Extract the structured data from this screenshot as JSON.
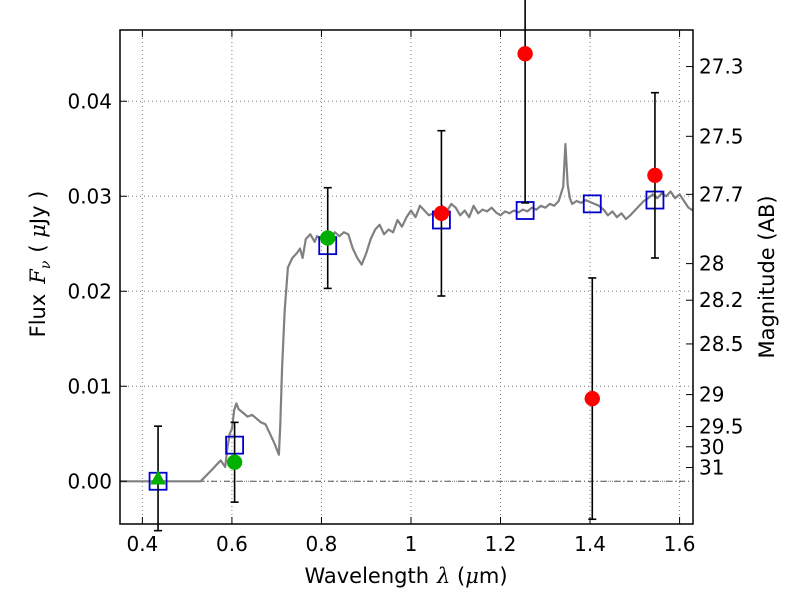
{
  "chart_data": {
    "type": "scatter",
    "xlabel": {
      "prefix": "Wavelength",
      "symbol": "λ",
      "unit_open": " (",
      "unit_mu": "μ",
      "unit_rest": "m)"
    },
    "ylabel": {
      "prefix": "Flux",
      "symbol": "F",
      "subscript": "ν",
      "unit_open": "( ",
      "unit_mu": "μ",
      "unit_rest": "Jy )"
    },
    "y2label": "Magnitude (AB)",
    "xlim": [
      0.35,
      1.63
    ],
    "ylim": [
      -0.0045,
      0.0475
    ],
    "grid": true,
    "x_ticks": [
      {
        "value": 0.4,
        "label": "0.4"
      },
      {
        "value": 0.6,
        "label": "0.6"
      },
      {
        "value": 0.8,
        "label": "0.8"
      },
      {
        "value": 1.0,
        "label": "1"
      },
      {
        "value": 1.2,
        "label": "1.2"
      },
      {
        "value": 1.4,
        "label": "1.4"
      },
      {
        "value": 1.6,
        "label": "1.6"
      }
    ],
    "y_ticks": [
      {
        "value": 0.0,
        "label": "0.00"
      },
      {
        "value": 0.01,
        "label": "0.01"
      },
      {
        "value": 0.02,
        "label": "0.02"
      },
      {
        "value": 0.03,
        "label": "0.03"
      },
      {
        "value": 0.04,
        "label": "0.04"
      }
    ],
    "mag_ticks": [
      {
        "value": 27.3,
        "label": "27.3"
      },
      {
        "value": 27.5,
        "label": "27.5"
      },
      {
        "value": 27.7,
        "label": "27.7"
      },
      {
        "value": 28,
        "label": "28"
      },
      {
        "value": 28.2,
        "label": "28.2"
      },
      {
        "value": 28.5,
        "label": "28.5"
      },
      {
        "value": 29,
        "label": "29"
      },
      {
        "value": 29.5,
        "label": "29.5"
      },
      {
        "value": 30,
        "label": "30"
      },
      {
        "value": 31,
        "label": "31"
      }
    ],
    "zero_flux_magnitude_jy": 3631,
    "colors": {
      "model": "#808080",
      "detection": "#ff0000",
      "green": "#00b000",
      "model_box": "#0000cc",
      "errorbar": "#000000",
      "grid": "#808080",
      "zero_line": "#555555"
    },
    "model_spectrum": [
      [
        0.35,
        0.0
      ],
      [
        0.53,
        0.0
      ],
      [
        0.555,
        0.0012
      ],
      [
        0.575,
        0.0022
      ],
      [
        0.585,
        0.0015
      ],
      [
        0.59,
        0.0035
      ],
      [
        0.595,
        0.005
      ],
      [
        0.6,
        0.0055
      ],
      [
        0.605,
        0.0075
      ],
      [
        0.61,
        0.0082
      ],
      [
        0.615,
        0.0076
      ],
      [
        0.625,
        0.0072
      ],
      [
        0.635,
        0.0068
      ],
      [
        0.645,
        0.007
      ],
      [
        0.655,
        0.0066
      ],
      [
        0.665,
        0.0062
      ],
      [
        0.675,
        0.006
      ],
      [
        0.685,
        0.005
      ],
      [
        0.695,
        0.004
      ],
      [
        0.705,
        0.0028
      ],
      [
        0.708,
        0.006
      ],
      [
        0.712,
        0.012
      ],
      [
        0.718,
        0.018
      ],
      [
        0.725,
        0.0225
      ],
      [
        0.735,
        0.0235
      ],
      [
        0.745,
        0.024
      ],
      [
        0.752,
        0.0245
      ],
      [
        0.758,
        0.0235
      ],
      [
        0.765,
        0.0255
      ],
      [
        0.775,
        0.026
      ],
      [
        0.785,
        0.0252
      ],
      [
        0.79,
        0.0258
      ],
      [
        0.8,
        0.0255
      ],
      [
        0.81,
        0.0258
      ],
      [
        0.82,
        0.0255
      ],
      [
        0.83,
        0.0262
      ],
      [
        0.84,
        0.0258
      ],
      [
        0.85,
        0.0262
      ],
      [
        0.86,
        0.026
      ],
      [
        0.87,
        0.0245
      ],
      [
        0.88,
        0.0235
      ],
      [
        0.89,
        0.0228
      ],
      [
        0.9,
        0.024
      ],
      [
        0.91,
        0.0255
      ],
      [
        0.92,
        0.0265
      ],
      [
        0.93,
        0.027
      ],
      [
        0.94,
        0.026
      ],
      [
        0.95,
        0.0265
      ],
      [
        0.96,
        0.0262
      ],
      [
        0.97,
        0.0275
      ],
      [
        0.98,
        0.0268
      ],
      [
        0.99,
        0.0278
      ],
      [
        1.0,
        0.0285
      ],
      [
        1.01,
        0.0278
      ],
      [
        1.02,
        0.029
      ],
      [
        1.03,
        0.0285
      ],
      [
        1.04,
        0.028
      ],
      [
        1.05,
        0.0282
      ],
      [
        1.06,
        0.0285
      ],
      [
        1.07,
        0.029
      ],
      [
        1.08,
        0.0284
      ],
      [
        1.09,
        0.0292
      ],
      [
        1.1,
        0.0288
      ],
      [
        1.11,
        0.028
      ],
      [
        1.12,
        0.0285
      ],
      [
        1.13,
        0.0278
      ],
      [
        1.14,
        0.029
      ],
      [
        1.15,
        0.0282
      ],
      [
        1.16,
        0.0286
      ],
      [
        1.17,
        0.0284
      ],
      [
        1.18,
        0.0288
      ],
      [
        1.19,
        0.0283
      ],
      [
        1.2,
        0.028
      ],
      [
        1.21,
        0.0284
      ],
      [
        1.22,
        0.0282
      ],
      [
        1.23,
        0.0285
      ],
      [
        1.24,
        0.0283
      ],
      [
        1.25,
        0.0286
      ],
      [
        1.26,
        0.0284
      ],
      [
        1.27,
        0.0288
      ],
      [
        1.28,
        0.0286
      ],
      [
        1.29,
        0.029
      ],
      [
        1.3,
        0.0288
      ],
      [
        1.31,
        0.0292
      ],
      [
        1.32,
        0.029
      ],
      [
        1.33,
        0.0295
      ],
      [
        1.34,
        0.031
      ],
      [
        1.345,
        0.0355
      ],
      [
        1.35,
        0.0312
      ],
      [
        1.355,
        0.0298
      ],
      [
        1.36,
        0.0292
      ],
      [
        1.37,
        0.0295
      ],
      [
        1.38,
        0.0293
      ],
      [
        1.39,
        0.0296
      ],
      [
        1.4,
        0.0294
      ],
      [
        1.41,
        0.0292
      ],
      [
        1.42,
        0.029
      ],
      [
        1.43,
        0.0286
      ],
      [
        1.44,
        0.028
      ],
      [
        1.45,
        0.0284
      ],
      [
        1.46,
        0.0278
      ],
      [
        1.47,
        0.0282
      ],
      [
        1.48,
        0.0276
      ],
      [
        1.49,
        0.028
      ],
      [
        1.5,
        0.0285
      ],
      [
        1.51,
        0.029
      ],
      [
        1.52,
        0.0295
      ],
      [
        1.53,
        0.0298
      ],
      [
        1.54,
        0.0302
      ],
      [
        1.55,
        0.0298
      ],
      [
        1.56,
        0.0303
      ],
      [
        1.57,
        0.03
      ],
      [
        1.58,
        0.0305
      ],
      [
        1.59,
        0.0298
      ],
      [
        1.6,
        0.0302
      ],
      [
        1.61,
        0.0295
      ],
      [
        1.62,
        0.0288
      ],
      [
        1.63,
        0.0285
      ]
    ],
    "model_photometry": [
      {
        "x": 0.435,
        "y": 0.0
      },
      {
        "x": 0.606,
        "y": 0.0038
      },
      {
        "x": 0.814,
        "y": 0.0248
      },
      {
        "x": 1.068,
        "y": 0.0275
      },
      {
        "x": 1.255,
        "y": 0.0285
      },
      {
        "x": 1.405,
        "y": 0.0292
      },
      {
        "x": 1.545,
        "y": 0.0296
      }
    ],
    "observations": [
      {
        "x": 0.435,
        "y": 0.0003,
        "yerr": 0.0055,
        "marker": "triangle",
        "color": "green"
      },
      {
        "x": 0.606,
        "y": 0.002,
        "yerr": 0.0042,
        "marker": "circle",
        "color": "green"
      },
      {
        "x": 0.814,
        "y": 0.0256,
        "yerr": 0.0053,
        "marker": "circle",
        "color": "green"
      },
      {
        "x": 1.068,
        "y": 0.0282,
        "yerr": 0.0087,
        "marker": "circle",
        "color": "detection"
      },
      {
        "x": 1.255,
        "y": 0.045,
        "yerr": 0.0157,
        "marker": "circle",
        "color": "detection"
      },
      {
        "x": 1.405,
        "y": 0.0087,
        "yerr": 0.0127,
        "marker": "circle",
        "color": "detection"
      },
      {
        "x": 1.545,
        "y": 0.0322,
        "yerr": 0.0087,
        "marker": "circle",
        "color": "detection"
      }
    ]
  }
}
